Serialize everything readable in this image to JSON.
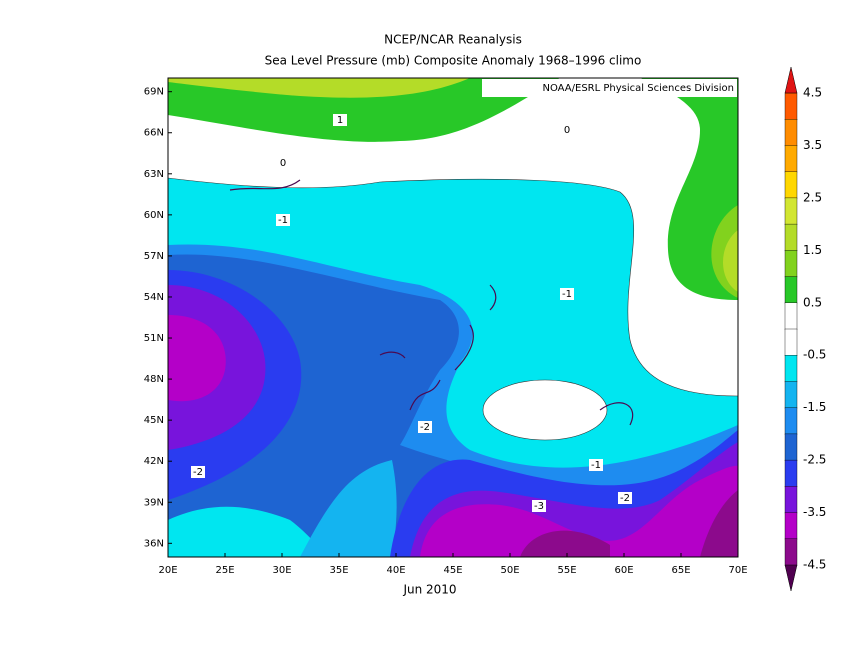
{
  "map": {
    "title": "NCEP/NCAR Reanalysis",
    "subtitle": "Sea Level Pressure (mb) Composite Anomaly 1968–1996 climo",
    "credit": "NOAA/ESRL Physical Sciences Division",
    "date_label": "Jun 2010",
    "xlim": [
      20,
      70
    ],
    "ylim": [
      35,
      70
    ],
    "xticks": [
      {
        "value": 20,
        "label": "20E"
      },
      {
        "value": 25,
        "label": "25E"
      },
      {
        "value": 30,
        "label": "30E"
      },
      {
        "value": 35,
        "label": "35E"
      },
      {
        "value": 40,
        "label": "40E"
      },
      {
        "value": 45,
        "label": "45E"
      },
      {
        "value": 50,
        "label": "50E"
      },
      {
        "value": 55,
        "label": "55E"
      },
      {
        "value": 60,
        "label": "60E"
      },
      {
        "value": 65,
        "label": "65E"
      },
      {
        "value": 70,
        "label": "70E"
      }
    ],
    "yticks": [
      {
        "value": 36,
        "label": "36N"
      },
      {
        "value": 39,
        "label": "39N"
      },
      {
        "value": 42,
        "label": "42N"
      },
      {
        "value": 45,
        "label": "45N"
      },
      {
        "value": 48,
        "label": "48N"
      },
      {
        "value": 51,
        "label": "51N"
      },
      {
        "value": 54,
        "label": "54N"
      },
      {
        "value": 57,
        "label": "57N"
      },
      {
        "value": 60,
        "label": "60N"
      },
      {
        "value": 63,
        "label": "63N"
      },
      {
        "value": 66,
        "label": "66N"
      },
      {
        "value": 69,
        "label": "69N"
      }
    ],
    "contour_labels": [
      1,
      0,
      0,
      -1,
      -1,
      -1,
      -2,
      -2,
      -2,
      -3
    ],
    "colorbar": {
      "levels": [
        4.5,
        3.5,
        2.5,
        1.5,
        0.5,
        -0.5,
        -1.5,
        -2.5,
        -3.5,
        -4.5
      ],
      "colors": [
        "#ff5a00",
        "#ff8c00",
        "#ffaa00",
        "#ffd700",
        "#d2e632",
        "#b4dc28",
        "#82d21e",
        "#28c828",
        "#ffffff",
        "#ffffff",
        "#00e6f0",
        "#14b4f0",
        "#1e8cf0",
        "#1e64d2",
        "#2a3cf0",
        "#7814dc",
        "#b400c8",
        "#8c0a8c"
      ],
      "over_color": "#e01414",
      "under_color": "#500050"
    }
  }
}
